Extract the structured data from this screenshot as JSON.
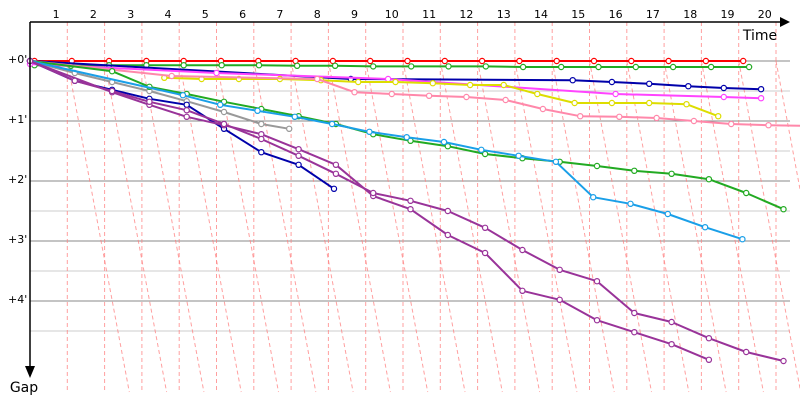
{
  "chart_data": {
    "type": "line",
    "x_axis": {
      "label": "Time",
      "ticks": [
        "1",
        "2",
        "3",
        "4",
        "5",
        "6",
        "7",
        "8",
        "9",
        "10",
        "11",
        "12",
        "13",
        "14",
        "15",
        "16",
        "17",
        "18",
        "19",
        "20"
      ]
    },
    "y_axis": {
      "label": "Gap",
      "ticks": [
        "+0'",
        "+1'",
        "+2'",
        "+3'",
        "+4'"
      ],
      "range_minutes": [
        0,
        5.3
      ],
      "direction": "down"
    },
    "grid": {
      "vertical": true,
      "horizontal": true,
      "lap_diagonals": true
    },
    "colors": {
      "axis": "#000000",
      "grid_major": "#888888",
      "grid_minor": "#cccccc",
      "lap_line": "#ff8080",
      "marker_fill": "#ffffff"
    },
    "series": [
      {
        "color": "#ff0000",
        "points": [
          [
            0.12,
            0
          ],
          [
            1.12,
            0
          ],
          [
            2.12,
            0
          ],
          [
            3.12,
            0
          ],
          [
            4.12,
            0
          ],
          [
            5.12,
            0
          ],
          [
            6.12,
            0
          ],
          [
            7.12,
            0
          ],
          [
            8.12,
            0
          ],
          [
            9.12,
            0
          ],
          [
            10.12,
            0
          ],
          [
            11.12,
            0
          ],
          [
            12.12,
            0
          ],
          [
            13.12,
            0
          ],
          [
            14.12,
            0
          ],
          [
            15.12,
            0
          ],
          [
            16.12,
            0
          ],
          [
            17.12,
            0
          ],
          [
            18.12,
            0
          ],
          [
            19.12,
            0
          ]
        ]
      },
      {
        "color": "#22aa22",
        "points": [
          [
            0.12,
            0.07
          ],
          [
            1.1,
            0.08
          ],
          [
            2.12,
            0.07
          ],
          [
            3.12,
            0.07
          ],
          [
            4.12,
            0.07
          ],
          [
            5.14,
            0.07
          ],
          [
            6.14,
            0.07
          ],
          [
            7.16,
            0.08
          ],
          [
            8.18,
            0.08
          ],
          [
            9.2,
            0.09
          ],
          [
            10.22,
            0.09
          ],
          [
            11.22,
            0.09
          ],
          [
            12.22,
            0.09
          ],
          [
            13.22,
            0.1
          ],
          [
            14.24,
            0.1
          ],
          [
            15.24,
            0.1
          ],
          [
            16.24,
            0.1
          ],
          [
            17.24,
            0.1
          ],
          [
            18.26,
            0.1
          ],
          [
            19.28,
            0.1
          ]
        ]
      },
      {
        "color": "#0000aa",
        "points": [
          [
            0.0,
            0.0
          ],
          [
            8.6,
            0.3
          ],
          [
            14.55,
            0.32
          ],
          [
            15.6,
            0.35
          ],
          [
            16.6,
            0.38
          ],
          [
            17.65,
            0.42
          ],
          [
            18.6,
            0.45
          ],
          [
            19.6,
            0.47
          ]
        ]
      },
      {
        "color": "#ff44ff",
        "points": [
          [
            0.0,
            0.05
          ],
          [
            5.0,
            0.2
          ],
          [
            9.6,
            0.3
          ],
          [
            15.7,
            0.55
          ],
          [
            18.6,
            0.6
          ],
          [
            19.6,
            0.62
          ]
        ]
      },
      {
        "color": "#dddd00",
        "points": [
          [
            3.6,
            0.28
          ],
          [
            4.6,
            0.3
          ],
          [
            5.6,
            0.3
          ],
          [
            6.7,
            0.3
          ],
          [
            7.8,
            0.32
          ],
          [
            8.8,
            0.35
          ],
          [
            9.8,
            0.35
          ],
          [
            10.8,
            0.37
          ],
          [
            11.8,
            0.4
          ],
          [
            12.7,
            0.4
          ],
          [
            13.6,
            0.55
          ],
          [
            14.6,
            0.7
          ],
          [
            15.6,
            0.7
          ],
          [
            16.6,
            0.7
          ],
          [
            17.6,
            0.72
          ],
          [
            18.45,
            0.92
          ]
        ]
      },
      {
        "color": "#ff88aa",
        "points": [
          [
            0.0,
            0.0
          ],
          [
            3.8,
            0.25
          ],
          [
            7.7,
            0.3
          ],
          [
            8.7,
            0.52
          ],
          [
            9.7,
            0.55
          ],
          [
            10.7,
            0.58
          ],
          [
            11.7,
            0.6
          ],
          [
            12.75,
            0.65
          ],
          [
            13.75,
            0.8
          ],
          [
            14.75,
            0.92
          ],
          [
            15.8,
            0.93
          ],
          [
            16.8,
            0.95
          ],
          [
            17.8,
            1.0
          ],
          [
            18.8,
            1.05
          ],
          [
            19.8,
            1.07
          ],
          [
            20.8,
            1.08
          ]
        ]
      },
      {
        "color": "#999999",
        "points": [
          [
            0.0,
            0.0
          ],
          [
            1.2,
            0.2
          ],
          [
            2.2,
            0.35
          ],
          [
            3.2,
            0.5
          ],
          [
            4.2,
            0.67
          ],
          [
            5.2,
            0.85
          ],
          [
            6.2,
            1.05
          ],
          [
            6.95,
            1.13
          ]
        ]
      },
      {
        "color": "#22aa22",
        "points": [
          [
            0.0,
            0.0
          ],
          [
            2.2,
            0.17
          ],
          [
            3.2,
            0.43
          ],
          [
            4.2,
            0.55
          ],
          [
            5.2,
            0.68
          ],
          [
            6.2,
            0.8
          ],
          [
            7.2,
            0.92
          ],
          [
            8.2,
            1.05
          ],
          [
            9.2,
            1.22
          ],
          [
            10.2,
            1.33
          ],
          [
            11.2,
            1.42
          ],
          [
            12.2,
            1.55
          ],
          [
            13.2,
            1.62
          ],
          [
            14.2,
            1.68
          ],
          [
            15.2,
            1.75
          ],
          [
            16.2,
            1.83
          ],
          [
            17.2,
            1.88
          ],
          [
            18.2,
            1.97
          ],
          [
            19.2,
            2.2
          ],
          [
            20.2,
            2.47
          ]
        ]
      },
      {
        "color": "#1a9fe8",
        "points": [
          [
            0.0,
            0.0
          ],
          [
            4.1,
            0.57
          ],
          [
            5.1,
            0.73
          ],
          [
            6.1,
            0.83
          ],
          [
            7.1,
            0.93
          ],
          [
            8.1,
            1.05
          ],
          [
            9.1,
            1.18
          ],
          [
            10.1,
            1.27
          ],
          [
            11.1,
            1.35
          ],
          [
            12.1,
            1.48
          ],
          [
            13.1,
            1.58
          ],
          [
            14.1,
            1.68
          ],
          [
            15.1,
            2.27
          ],
          [
            16.1,
            2.38
          ],
          [
            17.1,
            2.55
          ],
          [
            18.1,
            2.77
          ],
          [
            19.1,
            2.97
          ]
        ]
      },
      {
        "color": "#0000aa",
        "points": [
          [
            0.0,
            0.0
          ],
          [
            1.2,
            0.33
          ],
          [
            2.2,
            0.48
          ],
          [
            3.2,
            0.63
          ],
          [
            4.2,
            0.73
          ],
          [
            5.2,
            1.13
          ],
          [
            6.2,
            1.52
          ],
          [
            7.2,
            1.73
          ],
          [
            8.15,
            2.13
          ]
        ]
      },
      {
        "color": "#993399",
        "points": [
          [
            0.0,
            0.0
          ],
          [
            2.2,
            0.52
          ],
          [
            3.2,
            0.73
          ],
          [
            4.2,
            0.93
          ],
          [
            5.2,
            1.07
          ],
          [
            6.2,
            1.22
          ],
          [
            7.2,
            1.47
          ],
          [
            8.2,
            1.73
          ],
          [
            9.2,
            2.25
          ],
          [
            10.2,
            2.47
          ],
          [
            11.2,
            2.9
          ],
          [
            12.2,
            3.2
          ],
          [
            13.2,
            3.83
          ],
          [
            14.2,
            3.98
          ],
          [
            15.2,
            4.32
          ],
          [
            16.2,
            4.52
          ],
          [
            17.2,
            4.72
          ],
          [
            18.2,
            4.98
          ]
        ]
      },
      {
        "color": "#993399",
        "points": [
          [
            0.0,
            0.0
          ],
          [
            1.2,
            0.33
          ],
          [
            2.2,
            0.5
          ],
          [
            3.2,
            0.68
          ],
          [
            4.2,
            0.82
          ],
          [
            5.2,
            1.05
          ],
          [
            6.2,
            1.3
          ],
          [
            7.2,
            1.58
          ],
          [
            8.2,
            1.88
          ],
          [
            9.2,
            2.2
          ],
          [
            10.2,
            2.33
          ],
          [
            11.2,
            2.5
          ],
          [
            12.2,
            2.78
          ],
          [
            13.2,
            3.15
          ],
          [
            14.2,
            3.48
          ],
          [
            15.2,
            3.67
          ],
          [
            16.2,
            4.2
          ],
          [
            17.2,
            4.35
          ],
          [
            18.2,
            4.62
          ],
          [
            19.2,
            4.85
          ],
          [
            20.2,
            5.0
          ]
        ]
      }
    ]
  }
}
